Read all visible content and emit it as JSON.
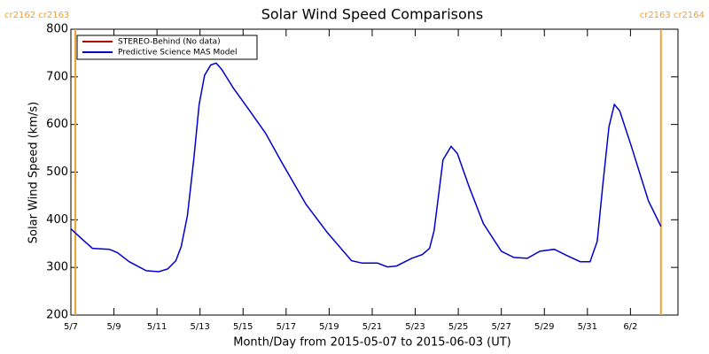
{
  "chart_data": {
    "type": "line",
    "title": "Solar Wind Speed Comparisons",
    "xlabel": "Month/Day from 2015-05-07 to 2015-06-03 (UT)",
    "ylabel": "Solar Wind Speed (km/s)",
    "x": [
      "2015-05-07T00:00",
      "2015-05-07T11:00",
      "2015-05-08T00:00",
      "2015-05-08T19:00",
      "2015-05-09T04:00",
      "2015-05-09T17:00",
      "2015-05-10T12:00",
      "2015-05-11T02:00",
      "2015-05-11T12:00",
      "2015-05-11T21:00",
      "2015-05-12T03:00",
      "2015-05-12T10:00",
      "2015-05-12T17:00",
      "2015-05-12T23:00",
      "2015-05-13T05:00",
      "2015-05-13T12:00",
      "2015-05-13T18:00",
      "2015-05-14T00:00",
      "2015-05-14T13:00",
      "2015-05-15T08:00",
      "2015-05-16T01:00",
      "2015-05-16T19:00",
      "2015-05-17T22:00",
      "2015-05-18T22:00",
      "2015-05-20T01:00",
      "2015-05-20T13:00",
      "2015-05-21T06:00",
      "2015-05-21T17:00",
      "2015-05-22T03:00",
      "2015-05-22T20:00",
      "2015-05-23T08:00",
      "2015-05-23T16:00",
      "2015-05-23T21:00",
      "2015-05-24T07:00",
      "2015-05-24T16:00",
      "2015-05-24T23:00",
      "2015-05-25T12:00",
      "2015-05-26T04:00",
      "2015-05-27T00:00",
      "2015-05-27T14:00",
      "2015-05-28T05:00",
      "2015-05-28T19:00",
      "2015-05-29T11:00",
      "2015-05-30T01:00",
      "2015-05-30T16:00",
      "2015-05-31T03:00",
      "2015-05-31T11:00",
      "2015-05-31T17:00",
      "2015-06-01T00:00",
      "2015-06-01T06:00",
      "2015-06-01T12:00",
      "2015-06-02T00:00",
      "2015-06-02T20:00",
      "2015-06-03T10:00"
    ],
    "series": [
      {
        "name": "STEREO-Behind (No data)",
        "color": "#b00000",
        "values": [
          null,
          null,
          null,
          null,
          null,
          null,
          null,
          null,
          null,
          null,
          null,
          null,
          null,
          null,
          null,
          null,
          null,
          null,
          null,
          null,
          null,
          null,
          null,
          null,
          null,
          null,
          null,
          null,
          null,
          null,
          null,
          null,
          null,
          null,
          null,
          null,
          null,
          null,
          null,
          null,
          null,
          null,
          null,
          null,
          null,
          null,
          null,
          null,
          null,
          null,
          null,
          null,
          null,
          null
        ]
      },
      {
        "name": "Predictive Science MAS Model",
        "color": "#0000cc",
        "values": [
          381,
          362,
          340,
          338,
          331,
          312,
          293,
          291,
          297,
          314,
          344,
          409,
          526,
          642,
          703,
          725,
          729,
          716,
          677,
          627,
          582,
          521,
          433,
          373,
          314,
          309,
          309,
          301,
          303,
          319,
          327,
          340,
          377,
          526,
          554,
          539,
          470,
          392,
          334,
          321,
          319,
          334,
          338,
          325,
          312,
          312,
          355,
          470,
          595,
          642,
          629,
          560,
          440,
          386
        ]
      }
    ],
    "xlim": [
      "2015-05-07T00:00",
      "2015-06-04T05:00"
    ],
    "xticks": [
      {
        "value": "2015-05-07T00:00",
        "label": "5/7"
      },
      {
        "value": "2015-05-09T00:00",
        "label": "5/9"
      },
      {
        "value": "2015-05-11T00:00",
        "label": "5/11"
      },
      {
        "value": "2015-05-13T00:00",
        "label": "5/13"
      },
      {
        "value": "2015-05-15T00:00",
        "label": "5/15"
      },
      {
        "value": "2015-05-17T00:00",
        "label": "5/17"
      },
      {
        "value": "2015-05-19T00:00",
        "label": "5/19"
      },
      {
        "value": "2015-05-21T00:00",
        "label": "5/21"
      },
      {
        "value": "2015-05-23T00:00",
        "label": "5/23"
      },
      {
        "value": "2015-05-25T00:00",
        "label": "5/25"
      },
      {
        "value": "2015-05-27T00:00",
        "label": "5/27"
      },
      {
        "value": "2015-05-29T00:00",
        "label": "5/29"
      },
      {
        "value": "2015-05-31T00:00",
        "label": "5/31"
      },
      {
        "value": "2015-06-02T00:00",
        "label": "6/2"
      }
    ],
    "ylim": [
      200,
      800
    ],
    "yticks": [
      200,
      300,
      400,
      500,
      600,
      700,
      800
    ],
    "legend": "upper left",
    "annotations": [
      {
        "x": "2015-05-07T05:00",
        "label": "cr2162 cr2163",
        "color": "#f0a030"
      },
      {
        "x": "2015-06-03T10:00",
        "label": "cr2163 cr2164",
        "color": "#f0a030"
      }
    ]
  }
}
